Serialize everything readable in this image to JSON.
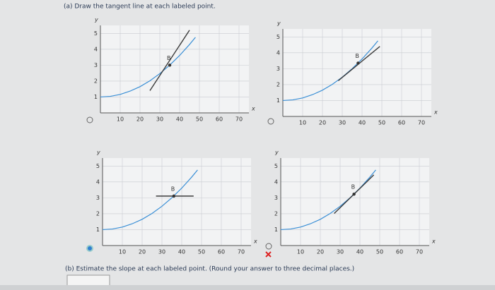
{
  "part_a": "(a) Draw the tangent line at each labeled point.",
  "part_b": "(b) Estimate the slope at each labeled point. (Round your answer to three decimal places.)",
  "chart_data": [
    {
      "type": "line",
      "x_label": "x",
      "y_label": "y",
      "xlim": [
        0,
        75
      ],
      "ylim": [
        0,
        5.5
      ],
      "xticks": [
        10,
        20,
        30,
        40,
        50,
        60,
        70
      ],
      "yticks": [
        1,
        2,
        3,
        4,
        5
      ],
      "grid": true,
      "series": [
        {
          "color": "#3a8fd6",
          "x": [
            0,
            5,
            10,
            15,
            20,
            25,
            30,
            35,
            40,
            45,
            48
          ],
          "values": [
            1.0,
            1.04,
            1.16,
            1.37,
            1.65,
            2.02,
            2.47,
            3.0,
            3.61,
            4.3,
            4.75
          ]
        },
        {
          "color": "#3b3b3b",
          "x": [
            25,
            45
          ],
          "values": [
            1.4,
            5.2
          ]
        }
      ],
      "point": {
        "x": 35,
        "y": 3.0,
        "label": "B"
      }
    },
    {
      "type": "line",
      "x_label": "x",
      "y_label": "y",
      "xlim": [
        0,
        75
      ],
      "ylim": [
        0,
        5.5
      ],
      "xticks": [
        10,
        20,
        30,
        40,
        50,
        60,
        70
      ],
      "yticks": [
        1,
        2,
        3,
        4,
        5
      ],
      "grid": true,
      "series": [
        {
          "color": "#3a8fd6",
          "x": [
            0,
            5,
            10,
            15,
            20,
            25,
            30,
            35,
            40,
            45,
            48
          ],
          "values": [
            1.0,
            1.04,
            1.16,
            1.37,
            1.65,
            2.02,
            2.47,
            3.0,
            3.61,
            4.3,
            4.75
          ]
        },
        {
          "color": "#3b3b3b",
          "x": [
            28,
            49
          ],
          "values": [
            2.25,
            4.4
          ]
        }
      ],
      "point": {
        "x": 38,
        "y": 3.35,
        "label": "B"
      }
    },
    {
      "type": "line",
      "x_label": "x",
      "y_label": "y",
      "xlim": [
        0,
        75
      ],
      "ylim": [
        0,
        5.5
      ],
      "xticks": [
        10,
        20,
        30,
        40,
        50,
        60,
        70
      ],
      "yticks": [
        1,
        2,
        3,
        4,
        5
      ],
      "grid": true,
      "series": [
        {
          "color": "#3a8fd6",
          "x": [
            0,
            5,
            10,
            15,
            20,
            25,
            30,
            35,
            40,
            45,
            48
          ],
          "values": [
            1.0,
            1.04,
            1.16,
            1.37,
            1.65,
            2.02,
            2.47,
            3.0,
            3.61,
            4.3,
            4.75
          ]
        },
        {
          "color": "#3b3b3b",
          "x": [
            27,
            46
          ],
          "values": [
            3.11,
            3.11
          ]
        }
      ],
      "point": {
        "x": 36,
        "y": 3.11,
        "label": "B"
      }
    },
    {
      "type": "line",
      "x_label": "x",
      "y_label": "y",
      "xlim": [
        0,
        75
      ],
      "ylim": [
        0,
        5.5
      ],
      "xticks": [
        10,
        20,
        30,
        40,
        50,
        60,
        70
      ],
      "yticks": [
        1,
        2,
        3,
        4,
        5
      ],
      "grid": true,
      "series": [
        {
          "color": "#3a8fd6",
          "x": [
            0,
            5,
            10,
            15,
            20,
            25,
            30,
            35,
            40,
            45,
            48
          ],
          "values": [
            1.0,
            1.04,
            1.16,
            1.37,
            1.65,
            2.02,
            2.47,
            3.0,
            3.61,
            4.3,
            4.75
          ]
        },
        {
          "color": "#3b3b3b",
          "x": [
            27,
            47
          ],
          "values": [
            2.02,
            4.44
          ]
        }
      ],
      "point": {
        "x": 37,
        "y": 3.23,
        "label": "B"
      }
    }
  ]
}
